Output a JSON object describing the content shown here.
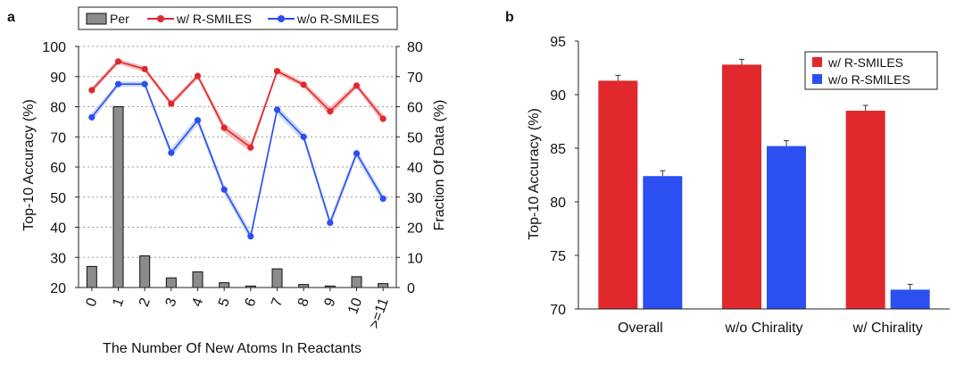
{
  "colors": {
    "red": "#e0282d",
    "red_band": "#f2a3a3",
    "blue": "#2b4ff0",
    "blue_band": "#b9cdf0",
    "gray_bar": "#8c8c8c",
    "axis": "#222222"
  },
  "chart_data": [
    {
      "panel": "a",
      "type": "line",
      "categories": [
        "0",
        "1",
        "2",
        "3",
        "4",
        "5",
        "6",
        "7",
        "8",
        "9",
        "10",
        ">=11"
      ],
      "series": [
        {
          "name": "w/ R-SMILES",
          "axis": "left",
          "values": [
            85.5,
            95,
            92.5,
            81,
            90.2,
            73,
            66.5,
            91.8,
            87.3,
            78.5,
            87,
            76
          ]
        },
        {
          "name": "w/o R-SMILES",
          "axis": "left",
          "values": [
            76.5,
            87.5,
            87.5,
            64.7,
            75.5,
            52.5,
            37,
            79,
            70,
            41.5,
            64.5,
            49.5
          ]
        },
        {
          "name": "Per",
          "axis": "right",
          "type": "bar",
          "values": [
            7,
            60,
            10.5,
            3.2,
            5.2,
            1.6,
            0.5,
            6.2,
            1,
            0.5,
            3.6,
            1.3
          ]
        }
      ],
      "xlabel": "The Number Of New Atoms In Reactants",
      "ylabel": "Top-10 Accuracy (%)",
      "y2label": "Fraction Of Data (%)",
      "ylim": [
        20,
        100
      ],
      "y2lim": [
        0,
        80
      ],
      "yticks": [
        "20",
        "30",
        "40",
        "50",
        "60",
        "70",
        "80",
        "90",
        "100"
      ],
      "y2ticks": [
        "0",
        "10",
        "20",
        "30",
        "40",
        "50",
        "60",
        "70",
        "80"
      ],
      "legend": {
        "placement": "top",
        "entries": [
          "Per",
          "w/ R-SMILES",
          "w/o R-SMILES"
        ]
      },
      "grid": "horizontal-dotted"
    },
    {
      "panel": "b",
      "type": "bar",
      "categories": [
        "Overall",
        "w/o Chirality",
        "w/ Chirality"
      ],
      "series": [
        {
          "name": "w/  R-SMILES",
          "values": [
            91.3,
            92.8,
            88.5
          ]
        },
        {
          "name": "w/o R-SMILES",
          "values": [
            82.4,
            85.2,
            71.8
          ]
        }
      ],
      "ylabel": "Top-10 Accuracy (%)",
      "ylim": [
        70,
        95
      ],
      "yticks": [
        "70",
        "75",
        "80",
        "85",
        "90",
        "95"
      ],
      "legend": {
        "placement": "top-right",
        "entries": [
          "w/  R-SMILES",
          "w/o R-SMILES"
        ]
      }
    }
  ]
}
